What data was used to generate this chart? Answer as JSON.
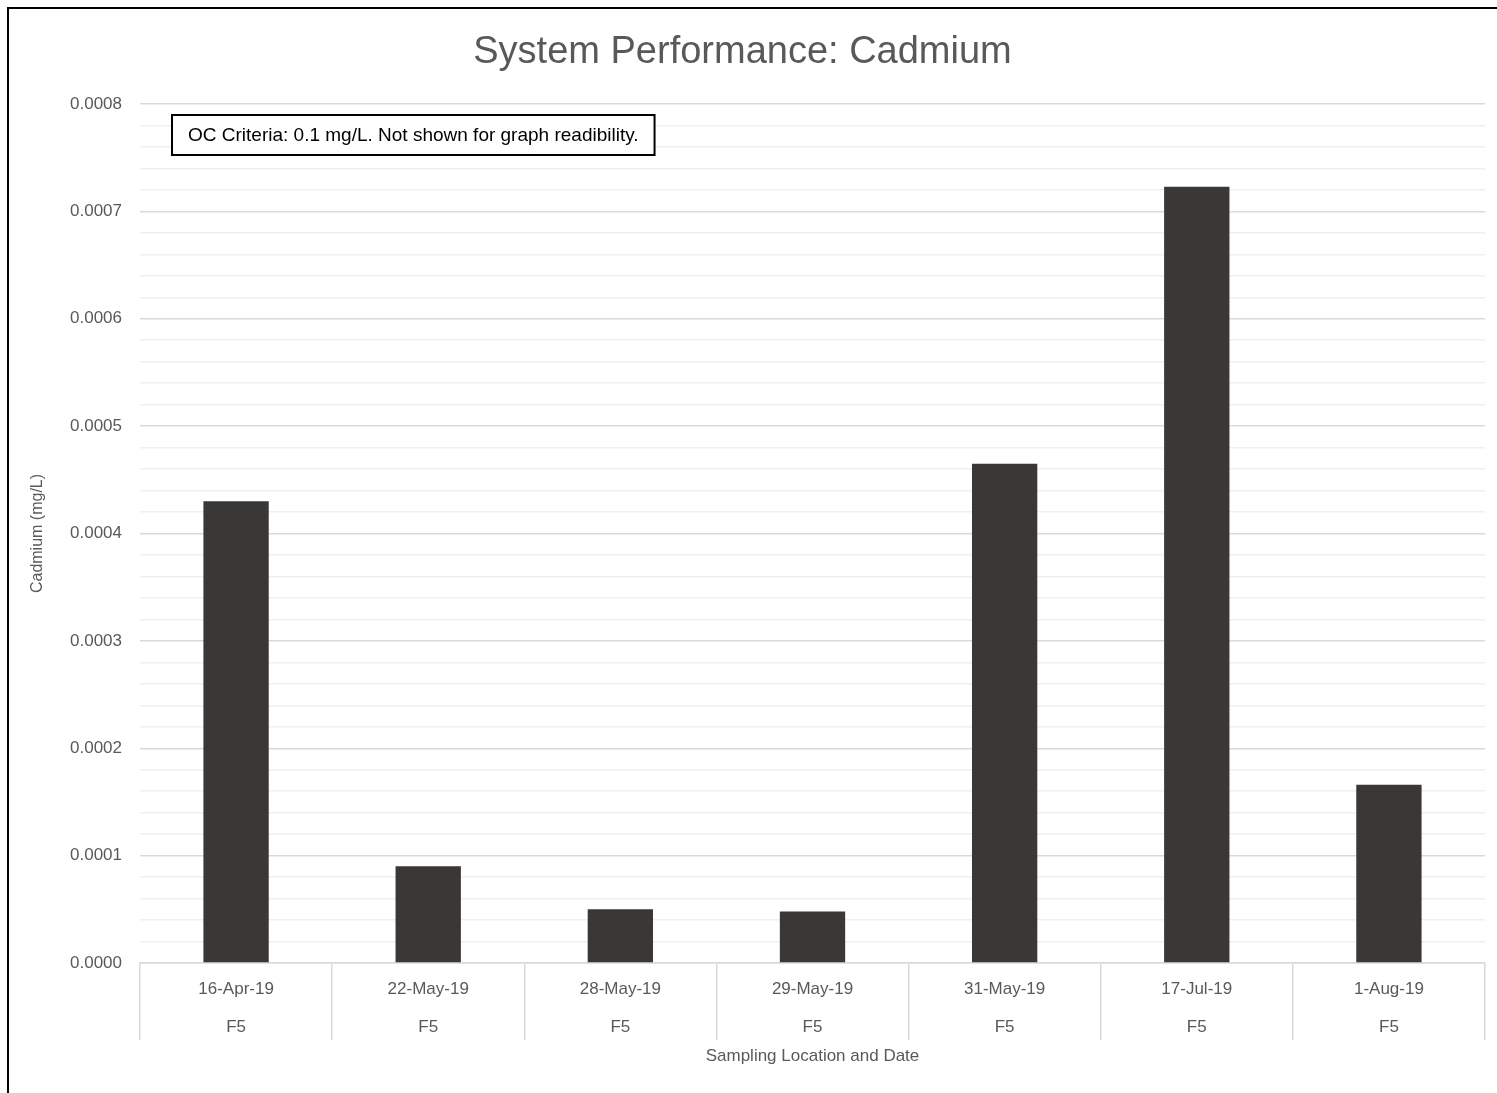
{
  "chart_data": {
    "type": "bar",
    "title": "System Performance: Cadmium",
    "xlabel": "Sampling Location and Date",
    "ylabel": "Cadmium (mg/L)",
    "annotations": [
      "OC Criteria: 0.1 mg/L. Not shown for graph readibility."
    ],
    "categories": [
      "16-Apr-19\nF5",
      "22-May-19\nF5",
      "28-May-19\nF5",
      "29-May-19\nF5",
      "31-May-19\nF5",
      "17-Jul-19\nF5",
      "1-Aug-19\nF5"
    ],
    "values": [
      0.00043,
      9e-05,
      5e-05,
      4.8e-05,
      0.000465,
      0.000723,
      0.000166
    ],
    "color": "#3a3836",
    "ylim": [
      0,
      0.0008
    ],
    "yticks": [
      {
        "value": 0,
        "label": "0.0000"
      },
      {
        "value": 2e-05,
        "label": null
      },
      {
        "value": 4e-05,
        "label": null
      },
      {
        "value": 6e-05,
        "label": null
      },
      {
        "value": 8e-05,
        "label": null
      },
      {
        "value": 0.0001,
        "label": "0.0001"
      },
      {
        "value": 0.00012,
        "label": null
      },
      {
        "value": 0.00014,
        "label": null
      },
      {
        "value": 0.00016,
        "label": null
      },
      {
        "value": 0.00018,
        "label": null
      },
      {
        "value": 0.0002,
        "label": "0.0002"
      },
      {
        "value": 0.00022,
        "label": null
      },
      {
        "value": 0.00024,
        "label": null
      },
      {
        "value": 0.00026,
        "label": null
      },
      {
        "value": 0.00028,
        "label": null
      },
      {
        "value": 0.0003,
        "label": "0.0003"
      },
      {
        "value": 0.00032,
        "label": null
      },
      {
        "value": 0.00034,
        "label": null
      },
      {
        "value": 0.00036,
        "label": null
      },
      {
        "value": 0.00038,
        "label": null
      },
      {
        "value": 0.0004,
        "label": "0.0004"
      },
      {
        "value": 0.00042,
        "label": null
      },
      {
        "value": 0.00044,
        "label": null
      },
      {
        "value": 0.00046,
        "label": null
      },
      {
        "value": 0.00048,
        "label": null
      },
      {
        "value": 0.0005,
        "label": "0.0005"
      },
      {
        "value": 0.00052,
        "label": null
      },
      {
        "value": 0.00054,
        "label": null
      },
      {
        "value": 0.00056,
        "label": null
      },
      {
        "value": 0.00058,
        "label": null
      },
      {
        "value": 0.0006,
        "label": "0.0006"
      },
      {
        "value": 0.00062,
        "label": null
      },
      {
        "value": 0.00064,
        "label": null
      },
      {
        "value": 0.00066,
        "label": null
      },
      {
        "value": 0.00068,
        "label": null
      },
      {
        "value": 0.0007,
        "label": "0.0007"
      },
      {
        "value": 0.00072,
        "label": null
      },
      {
        "value": 0.00074,
        "label": null
      },
      {
        "value": 0.00076,
        "label": null
      },
      {
        "value": 0.00078,
        "label": null
      },
      {
        "value": 0.0008,
        "label": "0.0008"
      }
    ],
    "grid": "y",
    "legend": false
  }
}
